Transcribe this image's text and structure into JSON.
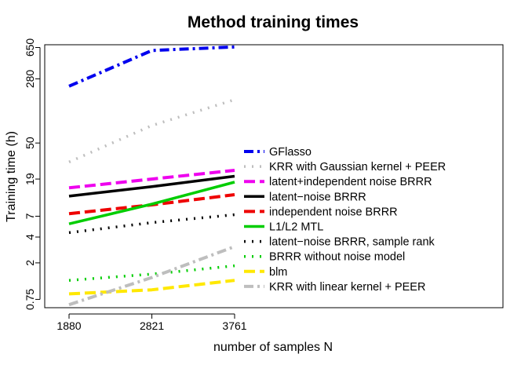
{
  "chart_data": {
    "type": "line",
    "title": "Method training times",
    "xlabel": "number of samples N",
    "ylabel": "Training time (h)",
    "x": [
      1880,
      2821,
      3761
    ],
    "xticks": [
      "1880",
      "2821",
      "3761"
    ],
    "xlim": [
      1880,
      3761
    ],
    "yscale": "log",
    "ylim": [
      0.6,
      700
    ],
    "yticks": [
      {
        "value": 0.75,
        "label": "0.75"
      },
      {
        "value": 2,
        "label": "2"
      },
      {
        "value": 4,
        "label": "4"
      },
      {
        "value": 7,
        "label": "7"
      },
      {
        "value": 19,
        "label": "19"
      },
      {
        "value": 50,
        "label": "50"
      },
      {
        "value": 280,
        "label": "280"
      },
      {
        "value": 650,
        "label": "650"
      }
    ],
    "legend_position": "right",
    "series": [
      {
        "name": "GFlasso",
        "values": [
          230,
          600,
          660
        ],
        "color": "#0000ee",
        "dash": "12,5,3,5",
        "width": 4
      },
      {
        "name": "KRR with Gaussian kernel + PEER",
        "values": [
          30,
          80,
          160
        ],
        "color": "#bebebe",
        "dash": "2,8",
        "width": 3.5
      },
      {
        "name": "latent+independent noise BRRR",
        "values": [
          15,
          19,
          24
        ],
        "color": "#ee00ee",
        "dash": "14,6",
        "width": 4
      },
      {
        "name": "latent−noise BRRR",
        "values": [
          12,
          15.5,
          20.5
        ],
        "color": "#000000",
        "dash": "",
        "width": 3.5
      },
      {
        "name": "independent noise BRRR",
        "values": [
          7.5,
          9.5,
          12.5
        ],
        "color": "#ee0000",
        "dash": "14,6",
        "width": 4
      },
      {
        "name": "L1/L2 MTL",
        "values": [
          5.7,
          9.7,
          17.5
        ],
        "color": "#00cd00",
        "dash": "",
        "width": 3.5
      },
      {
        "name": "latent−noise BRRR, sample rank",
        "values": [
          4.5,
          5.9,
          7.3
        ],
        "color": "#000000",
        "dash": "2,8",
        "width": 3.5
      },
      {
        "name": "BRRR without noise model",
        "values": [
          1.25,
          1.48,
          1.85
        ],
        "color": "#00cd00",
        "dash": "2,8",
        "width": 3.5
      },
      {
        "name": "blm",
        "values": [
          0.87,
          0.97,
          1.25
        ],
        "color": "#ffe800",
        "dash": "14,6",
        "width": 4
      },
      {
        "name": "KRR with linear kernel + PEER",
        "values": [
          0.65,
          1.35,
          3.1
        ],
        "color": "#bebebe",
        "dash": "12,5,3,5",
        "width": 4
      }
    ]
  }
}
